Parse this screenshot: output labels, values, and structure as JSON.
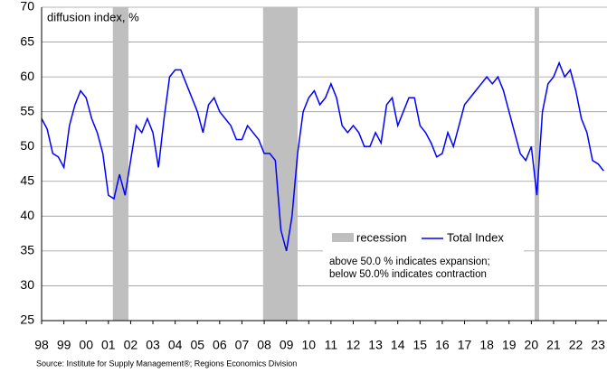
{
  "chart_data": {
    "type": "line",
    "y_label": "diffusion index, %",
    "annotation": [
      "above 50.0 % indicates expansion;",
      "below 50.0% indicates contraction"
    ],
    "source": "Source: Institute for Supply Management®; Regions Economics Division",
    "xlim": [
      1998,
      2023.4
    ],
    "xticks": [
      {
        "value": 1998,
        "label": "98"
      },
      {
        "value": 1999,
        "label": "99"
      },
      {
        "value": 2000,
        "label": "00"
      },
      {
        "value": 2001,
        "label": "01"
      },
      {
        "value": 2002,
        "label": "02"
      },
      {
        "value": 2003,
        "label": "03"
      },
      {
        "value": 2004,
        "label": "04"
      },
      {
        "value": 2005,
        "label": "05"
      },
      {
        "value": 2006,
        "label": "06"
      },
      {
        "value": 2007,
        "label": "07"
      },
      {
        "value": 2008,
        "label": "08"
      },
      {
        "value": 2009,
        "label": "09"
      },
      {
        "value": 2010,
        "label": "10"
      },
      {
        "value": 2011,
        "label": "11"
      },
      {
        "value": 2012,
        "label": "12"
      },
      {
        "value": 2013,
        "label": "13"
      },
      {
        "value": 2014,
        "label": "14"
      },
      {
        "value": 2015,
        "label": "15"
      },
      {
        "value": 2016,
        "label": "16"
      },
      {
        "value": 2017,
        "label": "17"
      },
      {
        "value": 2018,
        "label": "18"
      },
      {
        "value": 2019,
        "label": "19"
      },
      {
        "value": 2020,
        "label": "20"
      },
      {
        "value": 2021,
        "label": "21"
      },
      {
        "value": 2022,
        "label": "22"
      },
      {
        "value": 2023,
        "label": "23"
      }
    ],
    "ylim": [
      25,
      70
    ],
    "yticks": [
      25,
      30,
      35,
      40,
      45,
      50,
      55,
      60,
      65,
      70
    ],
    "grid": true,
    "recession": {
      "name": "recession",
      "color": "#bfbfbf",
      "periods": [
        [
          2001.2,
          2001.9
        ],
        [
          2007.95,
          2009.5
        ],
        [
          2020.15,
          2020.35
        ]
      ]
    },
    "series": [
      {
        "name": "Total Index",
        "color": "#0000ff",
        "x": [
          1998,
          1998.25,
          1998.5,
          1998.75,
          1999,
          1999.25,
          1999.5,
          1999.75,
          2000,
          2000.25,
          2000.5,
          2000.75,
          2001,
          2001.25,
          2001.5,
          2001.75,
          2002,
          2002.25,
          2002.5,
          2002.75,
          2003,
          2003.25,
          2003.5,
          2003.75,
          2004,
          2004.25,
          2004.5,
          2004.75,
          2005,
          2005.25,
          2005.5,
          2005.75,
          2006,
          2006.25,
          2006.5,
          2006.75,
          2007,
          2007.25,
          2007.5,
          2007.75,
          2008,
          2008.25,
          2008.5,
          2008.75,
          2009,
          2009.25,
          2009.5,
          2009.75,
          2010,
          2010.25,
          2010.5,
          2010.75,
          2011,
          2011.25,
          2011.5,
          2011.75,
          2012,
          2012.25,
          2012.5,
          2012.75,
          2013,
          2013.25,
          2013.5,
          2013.75,
          2014,
          2014.25,
          2014.5,
          2014.75,
          2015,
          2015.25,
          2015.5,
          2015.75,
          2016,
          2016.25,
          2016.5,
          2016.75,
          2017,
          2017.25,
          2017.5,
          2017.75,
          2018,
          2018.25,
          2018.5,
          2018.75,
          2019,
          2019.25,
          2019.5,
          2019.75,
          2020,
          2020.25,
          2020.5,
          2020.75,
          2021,
          2021.25,
          2021.5,
          2021.75,
          2022,
          2022.25,
          2022.5,
          2022.75,
          2023,
          2023.25
        ],
        "values": [
          54,
          52.5,
          49,
          48.5,
          47,
          53,
          56,
          58,
          57,
          54,
          52,
          49,
          43,
          42.5,
          46,
          43,
          48,
          53,
          52,
          54,
          52,
          47,
          54,
          60,
          61,
          61,
          59,
          57,
          55,
          52,
          56,
          57,
          55,
          54,
          53,
          51,
          51,
          53,
          52,
          51,
          49,
          49,
          48,
          38,
          35,
          40,
          49,
          55,
          57,
          58,
          56,
          57,
          59,
          57,
          53,
          52,
          53,
          52,
          50,
          50,
          52,
          50.5,
          56,
          57,
          53,
          55,
          57,
          57,
          53,
          52,
          50.5,
          48.5,
          49,
          52,
          50,
          53,
          56,
          57,
          58,
          59,
          60,
          59,
          60,
          58,
          55,
          52,
          49,
          48,
          50,
          43,
          55,
          59,
          60,
          62,
          60,
          61,
          58,
          54,
          52,
          48,
          47.5,
          46.5
        ]
      }
    ]
  }
}
